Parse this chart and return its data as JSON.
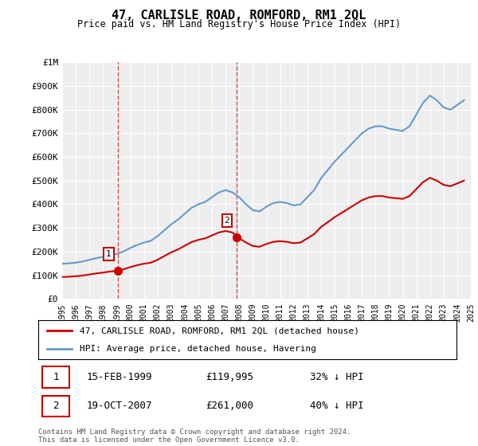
{
  "title": "47, CARLISLE ROAD, ROMFORD, RM1 2QL",
  "subtitle": "Price paid vs. HM Land Registry's House Price Index (HPI)",
  "hpi_years": [
    1995,
    1995.5,
    1996,
    1996.5,
    1997,
    1997.5,
    1998,
    1998.5,
    1999,
    1999.5,
    2000,
    2000.5,
    2001,
    2001.5,
    2002,
    2002.5,
    2003,
    2003.5,
    2004,
    2004.5,
    2005,
    2005.5,
    2006,
    2006.5,
    2007,
    2007.5,
    2008,
    2008.5,
    2009,
    2009.5,
    2010,
    2010.5,
    2011,
    2011.5,
    2012,
    2012.5,
    2013,
    2013.5,
    2014,
    2014.5,
    2015,
    2015.5,
    2016,
    2016.5,
    2017,
    2017.5,
    2018,
    2018.5,
    2019,
    2019.5,
    2020,
    2020.5,
    2021,
    2021.5,
    2022,
    2022.5,
    2023,
    2023.5,
    2024,
    2024.5
  ],
  "hpi_values": [
    148000,
    150000,
    153000,
    158000,
    165000,
    172000,
    178000,
    185000,
    190000,
    200000,
    215000,
    228000,
    238000,
    245000,
    265000,
    290000,
    315000,
    335000,
    360000,
    385000,
    400000,
    410000,
    430000,
    450000,
    460000,
    450000,
    430000,
    400000,
    375000,
    370000,
    390000,
    405000,
    410000,
    405000,
    395000,
    400000,
    430000,
    460000,
    510000,
    545000,
    580000,
    610000,
    640000,
    670000,
    700000,
    720000,
    730000,
    730000,
    720000,
    715000,
    710000,
    730000,
    780000,
    830000,
    860000,
    840000,
    810000,
    800000,
    820000,
    840000
  ],
  "sale1_year": 1999.12,
  "sale1_price": 119995,
  "sale2_year": 2007.79,
  "sale2_price": 261000,
  "vline1_year": 1999.12,
  "vline2_year": 2007.79,
  "red_line_color": "#cc0000",
  "blue_line_color": "#6699cc",
  "vline_color": "#cc0000",
  "legend1_label": "47, CARLISLE ROAD, ROMFORD, RM1 2QL (detached house)",
  "legend2_label": "HPI: Average price, detached house, Havering",
  "note1_num": "1",
  "note1_date": "15-FEB-1999",
  "note1_price": "£119,995",
  "note1_hpi": "32% ↓ HPI",
  "note2_num": "2",
  "note2_date": "19-OCT-2007",
  "note2_price": "£261,000",
  "note2_hpi": "40% ↓ HPI",
  "footer": "Contains HM Land Registry data © Crown copyright and database right 2024.\nThis data is licensed under the Open Government Licence v3.0.",
  "ylim": [
    0,
    1000000
  ],
  "xlim": [
    1995,
    2025
  ],
  "background_color": "#ffffff",
  "plot_bg_color": "#eeeeee"
}
